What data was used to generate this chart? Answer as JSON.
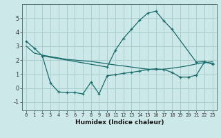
{
  "xlabel": "Humidex (Indice chaleur)",
  "background_color": "#cce8e8",
  "grid_color": "#aacece",
  "line_color": "#1a6b6b",
  "xlim": [
    -0.5,
    23.5
  ],
  "ylim": [
    -1.6,
    6.0
  ],
  "xticks": [
    0,
    1,
    2,
    3,
    4,
    5,
    6,
    7,
    8,
    9,
    10,
    11,
    12,
    13,
    14,
    15,
    16,
    17,
    18,
    19,
    20,
    21,
    22,
    23
  ],
  "yticks": [
    -1,
    0,
    1,
    2,
    3,
    4,
    5
  ],
  "series1_x": [
    0,
    1,
    2,
    10,
    11,
    12,
    13,
    14,
    15,
    16,
    17,
    18,
    21,
    22,
    23
  ],
  "series1_y": [
    3.35,
    2.85,
    2.3,
    1.5,
    2.7,
    3.55,
    4.2,
    4.85,
    5.35,
    5.5,
    4.8,
    4.2,
    1.85,
    1.9,
    1.7
  ],
  "series2_x": [
    0,
    1,
    2,
    3,
    4,
    5,
    6,
    7,
    8,
    9,
    10,
    11,
    12,
    13,
    14,
    15,
    16,
    17,
    18,
    19,
    20,
    21,
    22,
    23
  ],
  "series2_y": [
    3.0,
    2.5,
    2.35,
    2.25,
    2.15,
    2.05,
    2.0,
    1.95,
    1.9,
    1.82,
    1.73,
    1.65,
    1.58,
    1.5,
    1.42,
    1.35,
    1.32,
    1.35,
    1.42,
    1.5,
    1.6,
    1.72,
    1.82,
    1.88
  ],
  "series3_x": [
    2,
    3,
    4,
    5,
    6,
    7,
    8,
    9,
    10,
    11,
    12,
    13,
    14,
    15,
    16,
    17,
    18,
    19,
    20,
    21,
    22,
    23
  ],
  "series3_y": [
    2.3,
    0.35,
    -0.28,
    -0.32,
    -0.32,
    -0.42,
    0.42,
    -0.42,
    0.88,
    0.95,
    1.05,
    1.12,
    1.22,
    1.32,
    1.38,
    1.32,
    1.12,
    0.78,
    0.78,
    0.92,
    1.85,
    1.75
  ]
}
